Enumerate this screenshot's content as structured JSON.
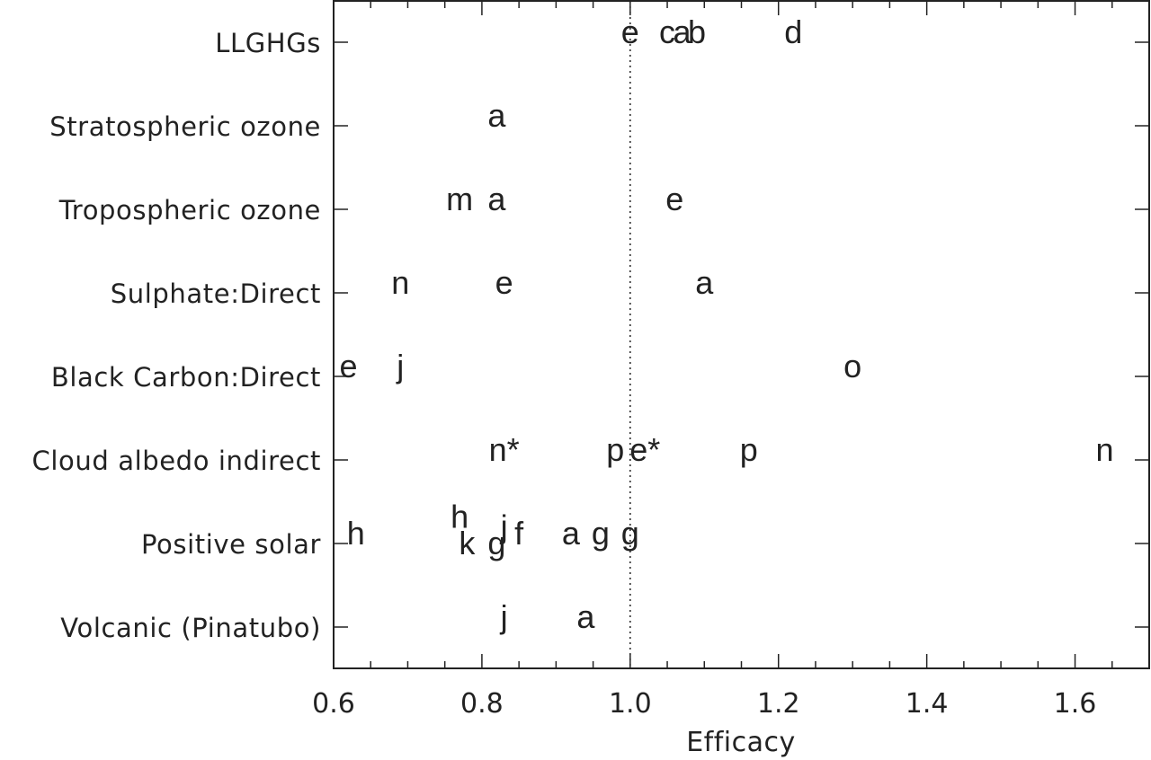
{
  "chart_data": {
    "type": "scatter",
    "xlabel": "Efficacy",
    "ylabel": "",
    "title": "",
    "xlim": [
      0.6,
      1.7
    ],
    "x_ticks": [
      0.6,
      0.8,
      1.0,
      1.2,
      1.4,
      1.6
    ],
    "x_tick_labels": [
      "0.6",
      "0.8",
      "1.0",
      "1.2",
      "1.4",
      "1.6"
    ],
    "reference_line": {
      "x": 1.0,
      "style": "dotted"
    },
    "categories": [
      "LLGHGs",
      "Stratospheric ozone",
      "Tropospheric ozone",
      "Sulphate:Direct",
      "Black Carbon:Direct",
      "Cloud albedo indirect",
      "Positive solar",
      "Volcanic (Pinatubo)"
    ],
    "grid": false,
    "legend": "none",
    "points": [
      {
        "category": "LLGHGs",
        "label": "e",
        "x": 1.0,
        "dy": 0
      },
      {
        "category": "LLGHGs",
        "label": "c",
        "x": 1.05,
        "dy": 0
      },
      {
        "category": "LLGHGs",
        "label": "a",
        "x": 1.07,
        "dy": 0
      },
      {
        "category": "LLGHGs",
        "label": "b",
        "x": 1.09,
        "dy": 0
      },
      {
        "category": "LLGHGs",
        "label": "d",
        "x": 1.22,
        "dy": 0
      },
      {
        "category": "Stratospheric ozone",
        "label": "a",
        "x": 0.82,
        "dy": 0
      },
      {
        "category": "Tropospheric ozone",
        "label": "m",
        "x": 0.77,
        "dy": 0
      },
      {
        "category": "Tropospheric ozone",
        "label": "a",
        "x": 0.82,
        "dy": 0
      },
      {
        "category": "Tropospheric ozone",
        "label": "e",
        "x": 1.06,
        "dy": 0
      },
      {
        "category": "Sulphate:Direct",
        "label": "n",
        "x": 0.69,
        "dy": 0
      },
      {
        "category": "Sulphate:Direct",
        "label": "e",
        "x": 0.83,
        "dy": 0
      },
      {
        "category": "Sulphate:Direct",
        "label": "a",
        "x": 1.1,
        "dy": 0
      },
      {
        "category": "Black Carbon:Direct",
        "label": "e",
        "x": 0.62,
        "dy": 0
      },
      {
        "category": "Black Carbon:Direct",
        "label": "j",
        "x": 0.69,
        "dy": 0
      },
      {
        "category": "Black Carbon:Direct",
        "label": "o",
        "x": 1.3,
        "dy": 0
      },
      {
        "category": "Cloud albedo indirect",
        "label": "n*",
        "x": 0.83,
        "dy": 0
      },
      {
        "category": "Cloud albedo indirect",
        "label": "p",
        "x": 0.98,
        "dy": 0
      },
      {
        "category": "Cloud albedo indirect",
        "label": "e*",
        "x": 1.02,
        "dy": 0
      },
      {
        "category": "Cloud albedo indirect",
        "label": "p",
        "x": 1.16,
        "dy": 0
      },
      {
        "category": "Cloud albedo indirect",
        "label": "n",
        "x": 1.64,
        "dy": 0
      },
      {
        "category": "Positive solar",
        "label": "h",
        "x": 0.63,
        "dy": 0
      },
      {
        "category": "Positive solar",
        "label": "h",
        "x": 0.77,
        "dy": -0.2
      },
      {
        "category": "Positive solar",
        "label": "k",
        "x": 0.78,
        "dy": 0.12
      },
      {
        "category": "Positive solar",
        "label": "g",
        "x": 0.82,
        "dy": 0.12
      },
      {
        "category": "Positive solar",
        "label": "j",
        "x": 0.83,
        "dy": -0.08
      },
      {
        "category": "Positive solar",
        "label": "f",
        "x": 0.85,
        "dy": 0
      },
      {
        "category": "Positive solar",
        "label": "a",
        "x": 0.92,
        "dy": 0
      },
      {
        "category": "Positive solar",
        "label": "g",
        "x": 0.96,
        "dy": 0
      },
      {
        "category": "Positive solar",
        "label": "g",
        "x": 1.0,
        "dy": 0
      },
      {
        "category": "Volcanic (Pinatubo)",
        "label": "j",
        "x": 0.83,
        "dy": 0
      },
      {
        "category": "Volcanic (Pinatubo)",
        "label": "a",
        "x": 0.94,
        "dy": 0
      }
    ]
  }
}
